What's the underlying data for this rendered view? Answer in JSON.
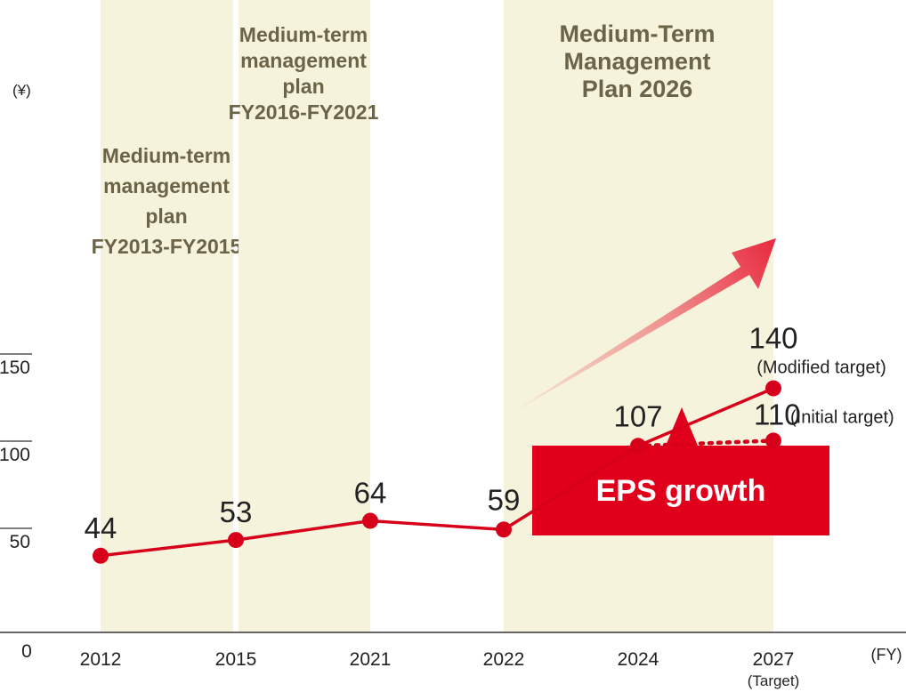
{
  "colors": {
    "line": "#d7001b",
    "band": "#f6f3dc",
    "band_text": "#6b6448",
    "callout": "#e0001b",
    "callout_text": "#ffffff",
    "axis_text": "#222222"
  },
  "chart_data": {
    "type": "line",
    "title": "",
    "y_unit": "(¥)",
    "x_unit": "(FY)",
    "ylim": [
      0,
      180
    ],
    "y_ticks": [
      {
        "value": 0,
        "label": "0"
      },
      {
        "value": 50,
        "label": "50"
      },
      {
        "value": 100,
        "label": "100"
      },
      {
        "value": 150,
        "label": "150"
      }
    ],
    "categories": [
      "2012",
      "2015",
      "2021",
      "2022",
      "2024",
      "2027"
    ],
    "category_sublabels": [
      "",
      "",
      "",
      "",
      "",
      "(Target)"
    ],
    "series": [
      {
        "style": "solid",
        "points": [
          {
            "x": "2012",
            "y": 44,
            "label": "44"
          },
          {
            "x": "2015",
            "y": 53,
            "label": "53"
          },
          {
            "x": "2021",
            "y": 64,
            "label": "64"
          },
          {
            "x": "2022",
            "y": 59,
            "label": "59"
          },
          {
            "x": "2024",
            "y": 107,
            "label": "107"
          },
          {
            "x": "2027",
            "y": 140,
            "label": "140",
            "note": "(Modified target)"
          }
        ]
      },
      {
        "style": "dotted",
        "points": [
          {
            "x": "2024",
            "y": 107
          },
          {
            "x": "2027",
            "y": 110,
            "label": "110",
            "note": "(Initial target)"
          }
        ]
      }
    ],
    "bands": [
      {
        "from": "2012",
        "to": "2015",
        "lines": [
          "Medium-term",
          "management",
          "plan",
          "FY2013-FY2015"
        ]
      },
      {
        "from": "2015",
        "to": "2021",
        "lines": [
          "Medium-term",
          "management",
          "plan",
          "FY2016-FY2021"
        ]
      },
      {
        "from": "2022",
        "to": "2027",
        "lines": [
          "Medium-Term",
          "Management",
          "Plan 2026"
        ]
      }
    ],
    "callout": {
      "label": "EPS growth"
    },
    "grid": false
  }
}
